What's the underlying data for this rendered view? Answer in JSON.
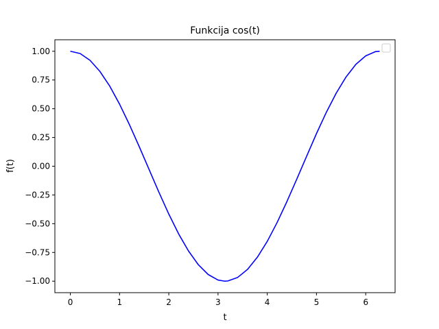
{
  "chart_data": {
    "type": "line",
    "title": "Funkcija cos(t)",
    "xlabel": "t",
    "ylabel": "f(t)",
    "xlim": [
      -0.314,
      6.597
    ],
    "ylim": [
      -1.1,
      1.1
    ],
    "xticks": [
      0,
      1,
      2,
      3,
      4,
      5,
      6
    ],
    "xtick_labels": [
      "0",
      "1",
      "2",
      "3",
      "4",
      "5",
      "6"
    ],
    "yticks": [
      -1.0,
      -0.75,
      -0.5,
      -0.25,
      0.0,
      0.25,
      0.5,
      0.75,
      1.0
    ],
    "ytick_labels": [
      "−1.00",
      "−0.75",
      "−0.50",
      "−0.25",
      "0.00",
      "0.25",
      "0.50",
      "0.75",
      "1.00"
    ],
    "grid": false,
    "legend": {
      "placement": "upper-right",
      "entries": []
    },
    "series": [
      {
        "color": "#0000ff",
        "x": [
          0.0,
          0.2,
          0.4,
          0.6,
          0.8,
          1.0,
          1.2,
          1.4,
          1.6,
          1.8,
          2.0,
          2.2,
          2.4,
          2.6,
          2.8,
          3.0,
          3.1416,
          3.2,
          3.4,
          3.6,
          3.8,
          4.0,
          4.2,
          4.4,
          4.6,
          4.8,
          5.0,
          5.2,
          5.4,
          5.6,
          5.8,
          6.0,
          6.2,
          6.2832
        ],
        "y": [
          1.0,
          0.98,
          0.921,
          0.825,
          0.697,
          0.54,
          0.362,
          0.17,
          -0.029,
          -0.227,
          -0.416,
          -0.589,
          -0.737,
          -0.857,
          -0.942,
          -0.99,
          -1.0,
          -0.998,
          -0.967,
          -0.897,
          -0.791,
          -0.654,
          -0.49,
          -0.307,
          -0.112,
          0.087,
          0.284,
          0.469,
          0.635,
          0.776,
          0.886,
          0.96,
          0.997,
          1.0
        ]
      }
    ]
  }
}
